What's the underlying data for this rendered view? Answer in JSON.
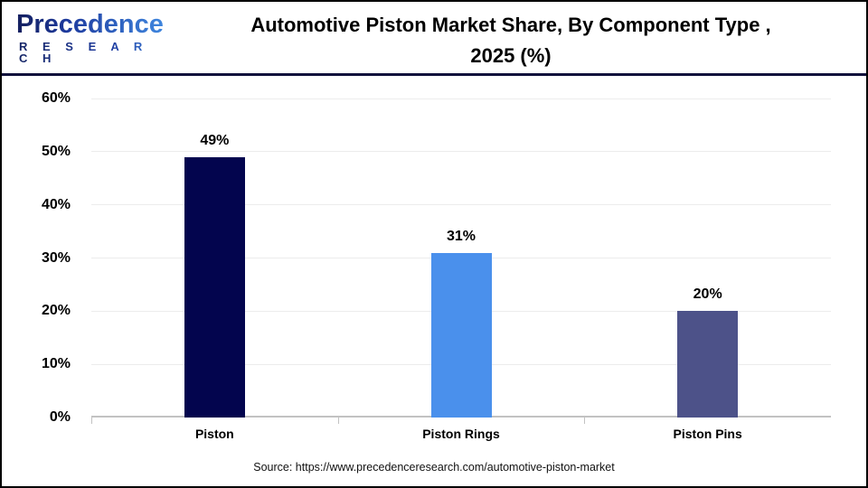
{
  "header": {
    "logo": {
      "name": "Precedence Research logo",
      "word": "Precedence",
      "sub": "R E S E A R C H"
    },
    "title_line1": "Automotive Piston Market Share, By Component Type ,",
    "title_line2": "2025 (%)"
  },
  "chart_data": {
    "type": "bar",
    "title": "Automotive Piston Market Share, By Component Type, 2025 (%)",
    "categories": [
      "Piston",
      "Piston Rings",
      "Piston Pins"
    ],
    "values": [
      49,
      31,
      20
    ],
    "value_labels": [
      "49%",
      "31%",
      "20%"
    ],
    "bar_colors": [
      "#03054e",
      "#4a90ec",
      "#4d5289"
    ],
    "xlabel": "",
    "ylabel": "",
    "ylim": [
      0,
      60
    ],
    "yticks": [
      0,
      10,
      20,
      30,
      40,
      50,
      60
    ],
    "ytick_labels": [
      "0%",
      "10%",
      "20%",
      "30%",
      "40%",
      "50%",
      "60%"
    ],
    "grid": true,
    "legend": false,
    "gridline_color": "#ececec",
    "axis_color": "#c2c2c2"
  },
  "footer": {
    "source": "Source: https://www.precedenceresearch.com/automotive-piston-market"
  }
}
